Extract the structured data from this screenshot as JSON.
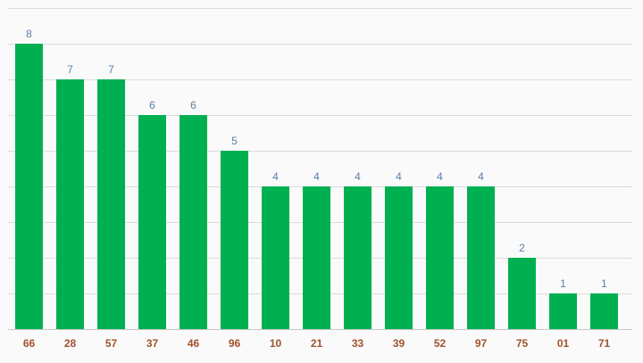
{
  "chart_data": {
    "type": "bar",
    "categories": [
      "66",
      "28",
      "57",
      "37",
      "46",
      "96",
      "10",
      "21",
      "33",
      "39",
      "52",
      "97",
      "75",
      "01",
      "71"
    ],
    "values": [
      8,
      7,
      7,
      6,
      6,
      5,
      4,
      4,
      4,
      4,
      4,
      4,
      2,
      1,
      1
    ],
    "ylim": [
      0,
      9
    ],
    "grid": true,
    "data_labels": true,
    "colors": {
      "bar": "#00b050",
      "data_label": "#5b7fa6",
      "tick_label": "#a0522d",
      "grid": "#dcdcdc",
      "axis": "#c8c8c8",
      "background": "#fafafa"
    }
  }
}
